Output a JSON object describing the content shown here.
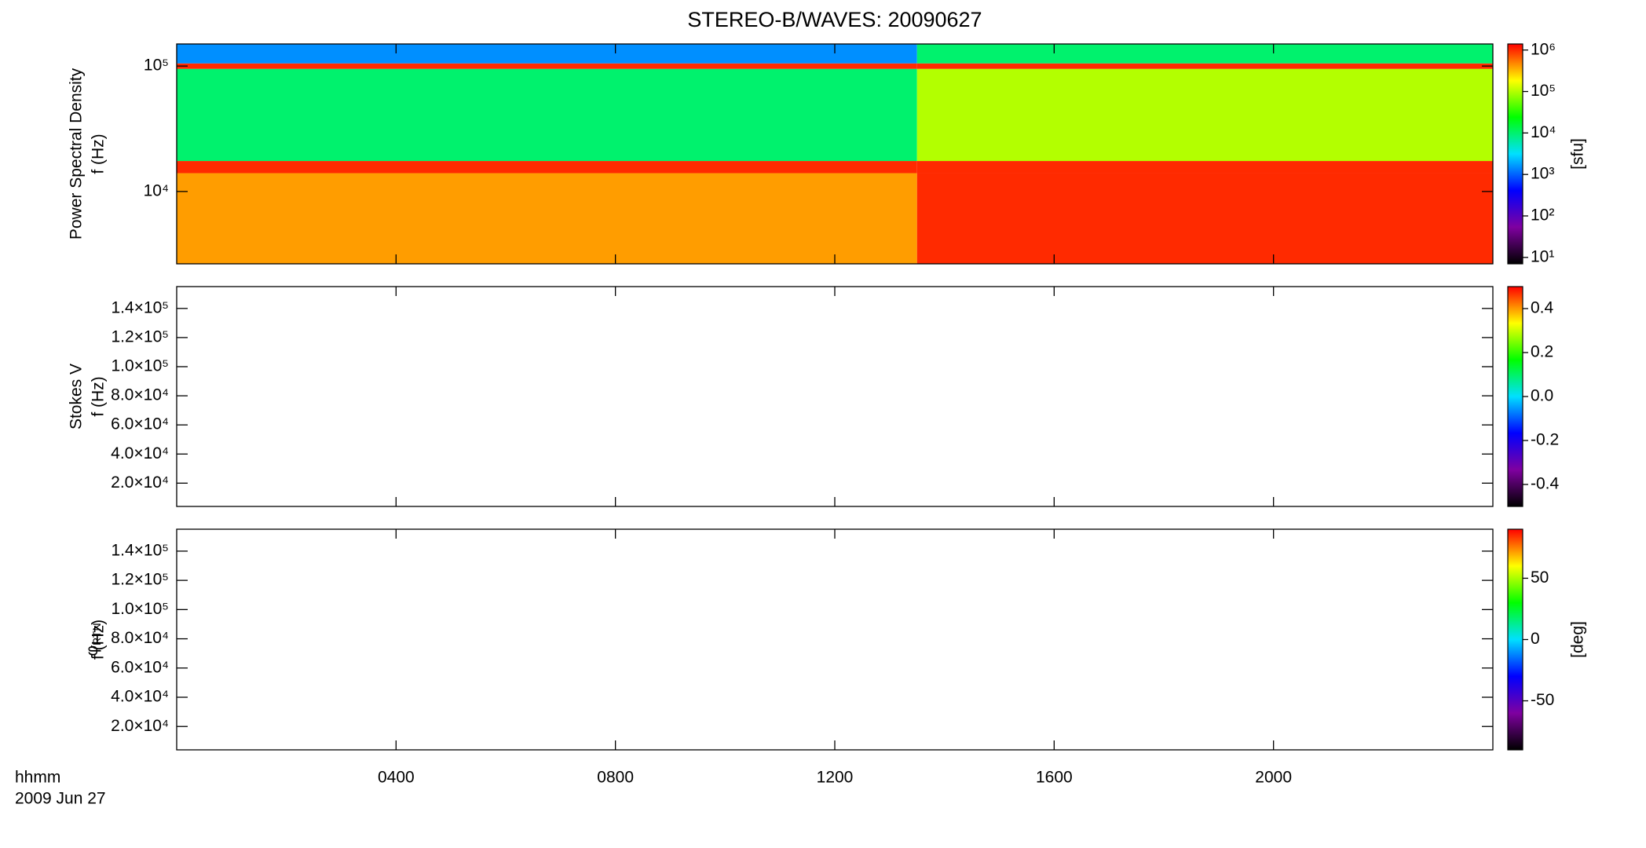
{
  "chart_data": [
    {
      "type": "heatmap",
      "title": "STEREO-B/WAVES: 20090627",
      "ylabel": [
        "Power Spectral Density",
        "f (Hz)"
      ],
      "yscale": "log",
      "ylim": [
        2650,
        150000
      ],
      "yticks": [
        {
          "value": 10000,
          "label": "10⁴"
        },
        {
          "value": 100000,
          "label": "10⁵"
        }
      ],
      "x_edges": [
        0,
        13.5,
        24
      ],
      "y_edges": [
        2650,
        14000,
        17500,
        95000,
        105000,
        150000
      ],
      "values": [
        [
          400000,
          1000000,
          10000,
          1000000,
          1500
        ],
        [
          1000000,
          1000000,
          100000,
          1000000,
          10000
        ]
      ],
      "colorbar": {
        "scale": "log",
        "lim": [
          7,
          1400000
        ],
        "label": "[sfu]",
        "ticks": [
          {
            "value": 10,
            "label": "10¹"
          },
          {
            "value": 100,
            "label": "10²"
          },
          {
            "value": 1000,
            "label": "10³"
          },
          {
            "value": 10000,
            "label": "10⁴"
          },
          {
            "value": 100000,
            "label": "10⁵"
          },
          {
            "value": 1000000,
            "label": "10⁶"
          }
        ]
      },
      "colormap": [
        "#000000",
        "#7f00a0",
        "#0000ff",
        "#00e0ff",
        "#00ff00",
        "#ffff00",
        "#ff0000"
      ]
    },
    {
      "type": "heatmap",
      "ylabel": [
        "Stokes V",
        "f (Hz)"
      ],
      "yscale": "linear",
      "ylim": [
        4000,
        155000
      ],
      "yticks": [
        {
          "value": 20000,
          "label": "2.0×10⁴"
        },
        {
          "value": 40000,
          "label": "4.0×10⁴"
        },
        {
          "value": 60000,
          "label": "6.0×10⁴"
        },
        {
          "value": 80000,
          "label": "8.0×10⁴"
        },
        {
          "value": 100000,
          "label": "1.0×10⁵"
        },
        {
          "value": 120000,
          "label": "1.2×10⁵"
        },
        {
          "value": 140000,
          "label": "1.4×10⁵"
        }
      ],
      "colorbar": {
        "scale": "linear",
        "lim": [
          -0.5,
          0.5
        ],
        "ticks": [
          -0.4,
          -0.2,
          {
            "value": 0,
            "label": "0.0"
          },
          0.2,
          0.4
        ]
      },
      "colormap": [
        "#000000",
        "#7f00a0",
        "#0000ff",
        "#00e0ff",
        "#00ff00",
        "#ffff00",
        "#ff0000"
      ]
    },
    {
      "type": "heatmap",
      "ylabel": [
        {
          "symbol": "φ",
          "subscript": "RTN"
        },
        "f (Hz)"
      ],
      "yscale": "linear",
      "ylim": [
        4000,
        155000
      ],
      "yticks": [
        {
          "value": 20000,
          "label": "2.0×10⁴"
        },
        {
          "value": 40000,
          "label": "4.0×10⁴"
        },
        {
          "value": 60000,
          "label": "6.0×10⁴"
        },
        {
          "value": 80000,
          "label": "8.0×10⁴"
        },
        {
          "value": 100000,
          "label": "1.0×10⁵"
        },
        {
          "value": 120000,
          "label": "1.2×10⁵"
        },
        {
          "value": 140000,
          "label": "1.4×10⁵"
        }
      ],
      "colorbar": {
        "scale": "linear",
        "lim": [
          -90,
          90
        ],
        "label": "[deg]",
        "ticks": [
          -50,
          0,
          50
        ]
      },
      "colormap": [
        "#000000",
        "#7f00a0",
        "#0000ff",
        "#00e0ff",
        "#00ff00",
        "#ffff00",
        "#ff0000"
      ],
      "xlabel": [
        "hhmm",
        "2009 Jun 27"
      ],
      "xlim": [
        0,
        24
      ],
      "xticks": [
        {
          "value": 4,
          "label": "0400"
        },
        {
          "value": 8,
          "label": "0800"
        },
        {
          "value": 12,
          "label": "1200"
        },
        {
          "value": 16,
          "label": "1600"
        },
        {
          "value": 20,
          "label": "2000"
        }
      ]
    }
  ]
}
